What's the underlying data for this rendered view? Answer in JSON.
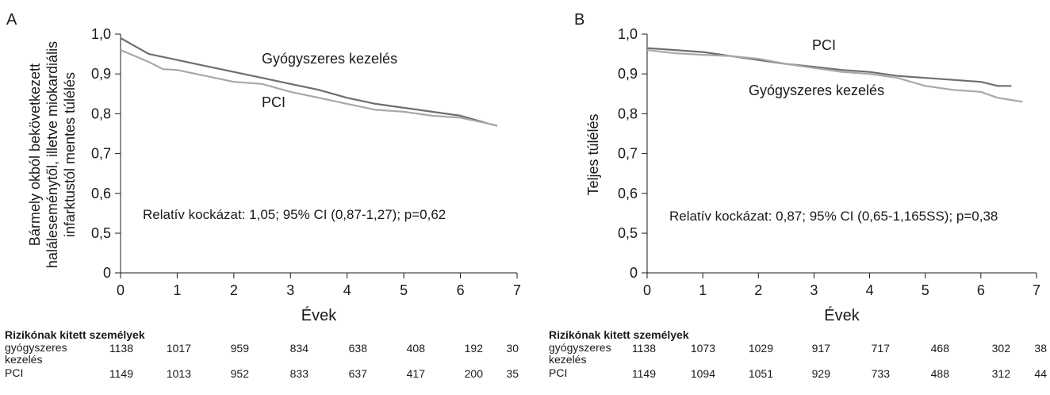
{
  "chart_data": [
    {
      "type": "line",
      "panel": "A",
      "ylabel_lines": [
        "Bármely okból bekövetkezett",
        "haláleseménytől, illetve miokardiális",
        "infarktustól mentes túlélés"
      ],
      "xlabel": "Évek",
      "xlim": [
        0,
        7
      ],
      "ylim": [
        0,
        1.0
      ],
      "xticks": [
        0,
        1,
        2,
        3,
        4,
        5,
        6,
        7
      ],
      "xtick_labels": [
        "0",
        "1",
        "2",
        "3",
        "4",
        "5",
        "6",
        "7"
      ],
      "yticks": [
        0,
        0.5,
        0.6,
        0.7,
        0.8,
        0.9,
        1.0
      ],
      "ytick_labels": [
        "0",
        "0,5",
        "0,6",
        "0,7",
        "0,8",
        "0,9",
        "1,0"
      ],
      "annotation": "Relatív kockázat: 1,05; 95% CI (0,87-1,27); p=0,62",
      "series": [
        {
          "name": "Gyógyszeres kezelés",
          "color": "#6e6e6e",
          "x": [
            0,
            0.5,
            1,
            1.5,
            2,
            2.5,
            3,
            3.5,
            4,
            4.5,
            5,
            5.5,
            6,
            6.5,
            6.65
          ],
          "y": [
            0.99,
            0.95,
            0.935,
            0.92,
            0.905,
            0.89,
            0.875,
            0.86,
            0.84,
            0.825,
            0.815,
            0.805,
            0.795,
            0.775,
            0.77
          ]
        },
        {
          "name": "PCI",
          "color": "#a8a8a8",
          "x": [
            0,
            0.25,
            0.5,
            0.75,
            1,
            1.5,
            2,
            2.5,
            3,
            3.5,
            4,
            4.5,
            5,
            5.5,
            6,
            6.5,
            6.65
          ],
          "y": [
            0.96,
            0.945,
            0.93,
            0.912,
            0.91,
            0.895,
            0.88,
            0.875,
            0.855,
            0.84,
            0.825,
            0.81,
            0.805,
            0.795,
            0.79,
            0.775,
            0.77
          ]
        }
      ]
    },
    {
      "type": "line",
      "panel": "B",
      "ylabel_lines": [
        "Teljes túlélés"
      ],
      "xlabel": "Évek",
      "xlim": [
        0,
        7
      ],
      "ylim": [
        0,
        1.0
      ],
      "xticks": [
        0,
        1,
        2,
        3,
        4,
        5,
        6,
        7
      ],
      "xtick_labels": [
        "0",
        "1",
        "2",
        "3",
        "4",
        "5",
        "6",
        "7"
      ],
      "yticks": [
        0,
        0.5,
        0.6,
        0.7,
        0.8,
        0.9,
        1.0
      ],
      "ytick_labels": [
        "0",
        "0,5",
        "0,6",
        "0,7",
        "0,8",
        "0,9",
        "1,0"
      ],
      "annotation": "Relatív kockázat: 0,87; 95% CI (0,65-1,165SS); p=0,38",
      "series": [
        {
          "name": "PCI",
          "color": "#6e6e6e",
          "x": [
            0,
            0.5,
            1,
            1.5,
            2,
            2.5,
            3,
            3.5,
            4,
            4.5,
            5,
            5.5,
            6,
            6.3,
            6.55
          ],
          "y": [
            0.965,
            0.96,
            0.955,
            0.945,
            0.935,
            0.925,
            0.918,
            0.91,
            0.905,
            0.895,
            0.89,
            0.885,
            0.88,
            0.87,
            0.87
          ]
        },
        {
          "name": "Gyógyszeres kezelés",
          "color": "#a8a8a8",
          "x": [
            0,
            0.5,
            1,
            1.5,
            2,
            2.5,
            3,
            3.5,
            4,
            4.5,
            5,
            5.5,
            6,
            6.3,
            6.75
          ],
          "y": [
            0.96,
            0.952,
            0.948,
            0.945,
            0.938,
            0.925,
            0.915,
            0.905,
            0.9,
            0.89,
            0.87,
            0.86,
            0.855,
            0.84,
            0.83
          ]
        }
      ]
    }
  ],
  "panels": [
    {
      "letter": "A",
      "series_labels": [
        "Gyógyszeres kezelés",
        "PCI"
      ],
      "risk_table": {
        "title": "Rizikónak kitett személyek",
        "rows": [
          {
            "name": "gyógyszeres kezelés",
            "name_lines": [
              "gyógyszeres",
              "kezelés"
            ],
            "values": [
              "1138",
              "1017",
              "959",
              "834",
              "638",
              "408",
              "192",
              "30"
            ]
          },
          {
            "name": "PCI",
            "name_lines": [
              "PCI"
            ],
            "values": [
              "1149",
              "1013",
              "952",
              "833",
              "637",
              "417",
              "200",
              "35"
            ]
          }
        ]
      }
    },
    {
      "letter": "B",
      "series_labels": [
        "PCI",
        "Gyógyszeres kezelés"
      ],
      "risk_table": {
        "title": "Rizikónak kitett személyek",
        "rows": [
          {
            "name": "gyógyszeres kezelés",
            "name_lines": [
              "gyógyszeres",
              "kezelés"
            ],
            "values": [
              "1138",
              "1073",
              "1029",
              "917",
              "717",
              "468",
              "302",
              "38"
            ]
          },
          {
            "name": "PCI",
            "name_lines": [
              "PCI"
            ],
            "values": [
              "1149",
              "1094",
              "1051",
              "929",
              "733",
              "488",
              "312",
              "44"
            ]
          }
        ]
      }
    }
  ]
}
